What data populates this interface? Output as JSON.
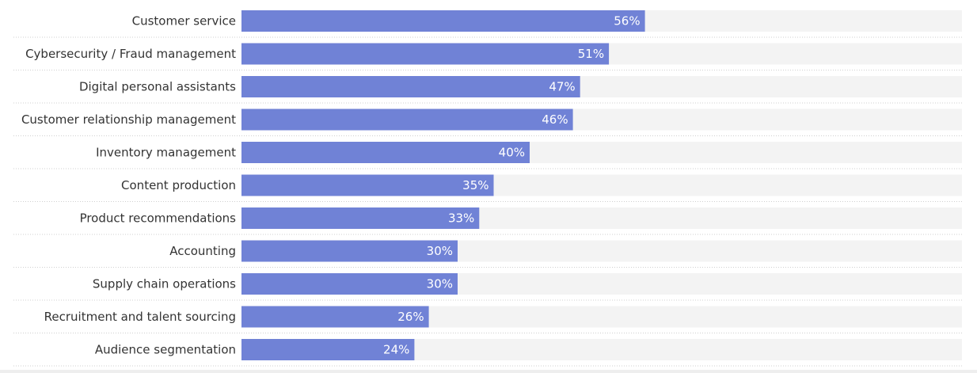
{
  "chart_data": {
    "type": "bar",
    "orientation": "horizontal",
    "categories": [
      "Customer service",
      "Cybersecurity / Fraud management",
      "Digital personal assistants",
      "Customer relationship management",
      "Inventory management",
      "Content production",
      "Product recommendations",
      "Accounting",
      "Supply chain operations",
      "Recruitment and talent sourcing",
      "Audience segmentation"
    ],
    "values": [
      56,
      51,
      47,
      46,
      40,
      35,
      33,
      30,
      30,
      26,
      24
    ],
    "value_labels": [
      "56%",
      "51%",
      "47%",
      "46%",
      "40%",
      "35%",
      "33%",
      "30%",
      "30%",
      "26%",
      "24%"
    ],
    "xlim": [
      0,
      100
    ],
    "unit": "%",
    "title": "",
    "xlabel": "",
    "ylabel": "",
    "grid": false,
    "legend": "none"
  },
  "colors": {
    "bar": "#7082d6",
    "track": "#f3f3f3",
    "separator": "#cfcfcf",
    "label_text": "#333333",
    "value_text": "#ffffff"
  }
}
